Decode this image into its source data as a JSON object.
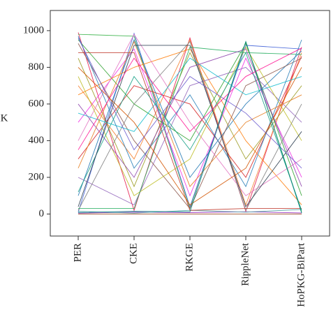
{
  "chart_data": {
    "type": "line",
    "y_label": "K",
    "categories": [
      "PER",
      "CKE",
      "RKGE",
      "RippleNet",
      "HoPKG-BiPart"
    ],
    "ylim": [
      -120,
      1110
    ],
    "yticks": [
      0,
      200,
      400,
      600,
      800,
      1000
    ],
    "series": [
      {
        "color": "#e6194b",
        "values": [
          990,
          20,
          960,
          15,
          910
        ]
      },
      {
        "color": "#3cb44b",
        "values": [
          980,
          970,
          30,
          940,
          10
        ]
      },
      {
        "color": "#4363d8",
        "values": [
          10,
          985,
          40,
          920,
          900
        ]
      },
      {
        "color": "#f58231",
        "values": [
          700,
          300,
          950,
          50,
          880
        ]
      },
      {
        "color": "#911eb4",
        "values": [
          5,
          10,
          8,
          12,
          6
        ]
      },
      {
        "color": "#46a0a0",
        "values": [
          15,
          5,
          20,
          10,
          25
        ]
      },
      {
        "color": "#f032e6",
        "values": [
          500,
          900,
          100,
          850,
          200
        ]
      },
      {
        "color": "#9a9a20",
        "values": [
          850,
          150,
          880,
          300,
          700
        ]
      },
      {
        "color": "#d62728",
        "values": [
          300,
          700,
          600,
          200,
          860
        ]
      },
      {
        "color": "#2ca02c",
        "values": [
          950,
          600,
          400,
          930,
          100
        ]
      },
      {
        "color": "#1f77b4",
        "values": [
          100,
          950,
          200,
          600,
          890
        ]
      },
      {
        "color": "#ff7f0e",
        "values": [
          650,
          800,
          900,
          400,
          50
        ]
      },
      {
        "color": "#9467bd",
        "values": [
          200,
          50,
          700,
          800,
          500
        ]
      },
      {
        "color": "#8c564b",
        "values": [
          930,
          400,
          30,
          700,
          850
        ]
      },
      {
        "color": "#e377c2",
        "values": [
          400,
          980,
          500,
          100,
          300
        ]
      },
      {
        "color": "#7f7f7f",
        "values": [
          20,
          600,
          940,
          20,
          600
        ]
      },
      {
        "color": "#bcbd22",
        "values": [
          750,
          100,
          300,
          910,
          400
        ]
      },
      {
        "color": "#17becf",
        "values": [
          550,
          450,
          850,
          650,
          750
        ]
      },
      {
        "color": "#c0392b",
        "values": [
          880,
          880,
          20,
          30,
          30
        ]
      },
      {
        "color": "#27ae60",
        "values": [
          30,
          30,
          910,
          880,
          870
        ]
      },
      {
        "color": "#2980b9",
        "values": [
          970,
          250,
          650,
          150,
          950
        ]
      },
      {
        "color": "#e67e22",
        "values": [
          250,
          940,
          150,
          500,
          650
        ]
      },
      {
        "color": "#8e44ad",
        "values": [
          600,
          200,
          800,
          900,
          150
        ]
      },
      {
        "color": "#16a085",
        "values": [
          120,
          750,
          350,
          880,
          20
        ]
      },
      {
        "color": "#d35400",
        "values": [
          800,
          500,
          50,
          250,
          800
        ]
      },
      {
        "color": "#2c3e50",
        "values": [
          40,
          920,
          920,
          40,
          450
        ]
      },
      {
        "color": "#a0522d",
        "values": [
          0,
          0,
          0,
          0,
          0
        ]
      },
      {
        "color": "#6a5acd",
        "values": [
          960,
          350,
          750,
          550,
          250
        ]
      },
      {
        "color": "#ff1493",
        "values": [
          350,
          850,
          450,
          750,
          905
        ]
      },
      {
        "color": "#008080",
        "values": [
          8,
          15,
          12,
          940,
          5
        ]
      }
    ]
  }
}
